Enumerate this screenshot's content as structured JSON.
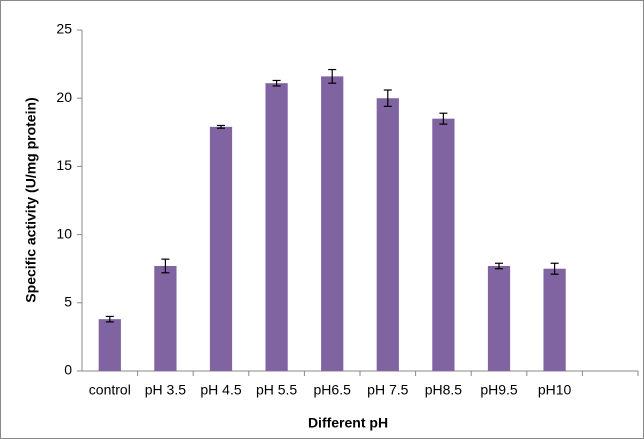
{
  "chart_data": {
    "type": "bar",
    "x_label": "Different pH",
    "y_label": "Specific activity (U/mg protein)",
    "categories": [
      "control",
      "pH 3.5",
      "pH 4.5",
      "pH 5.5",
      "pH6.5",
      "pH 7.5",
      "pH8.5",
      "pH9.5",
      "pH10",
      null
    ],
    "values": [
      3.8,
      7.7,
      17.9,
      21.1,
      21.6,
      20.0,
      18.5,
      7.7,
      7.5,
      null
    ],
    "errors": [
      0.2,
      0.5,
      0.1,
      0.2,
      0.5,
      0.6,
      0.4,
      0.2,
      0.4,
      null
    ],
    "color": "#8064a2",
    "ylim": [
      0,
      25
    ],
    "yticks": [
      0,
      5,
      10,
      15,
      20,
      25
    ],
    "grid": false
  }
}
